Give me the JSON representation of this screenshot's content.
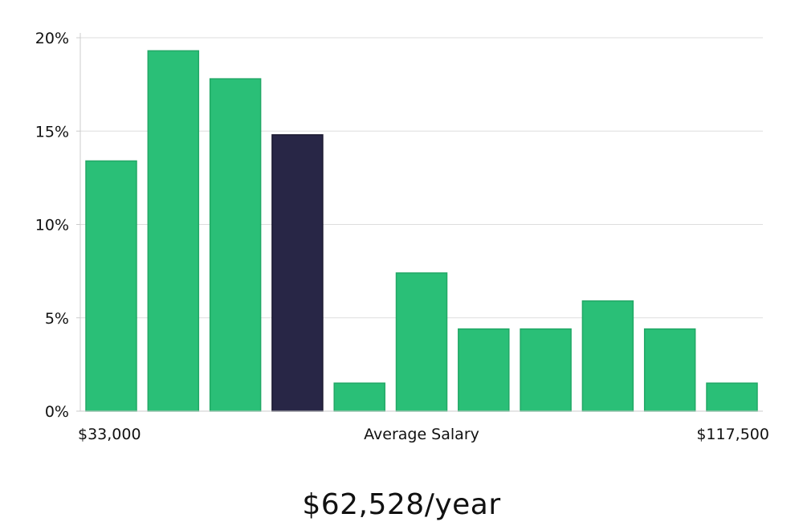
{
  "chart_data": {
    "type": "bar",
    "title": "",
    "xlabel": "Average Salary",
    "ylabel": "",
    "x_min_label": "$33,000",
    "x_max_label": "$117,500",
    "ylim": [
      0,
      20
    ],
    "y_ticks": [
      0,
      5,
      10,
      15,
      20
    ],
    "y_tick_labels": [
      "0%",
      "5%",
      "10%",
      "15%",
      "20%"
    ],
    "grid": true,
    "values": [
      13.4,
      19.3,
      17.8,
      14.8,
      1.5,
      7.4,
      4.4,
      4.4,
      5.9,
      4.4,
      1.5
    ],
    "highlight_index": 3,
    "colors": {
      "bar": "#2abf77",
      "bar_border": "#22a866",
      "highlight": "#282646",
      "highlight_border": "#1a1830",
      "grid": "#dddddd",
      "axis": "#cccccc"
    }
  },
  "summary": {
    "salary_text": "$62,528/year"
  }
}
